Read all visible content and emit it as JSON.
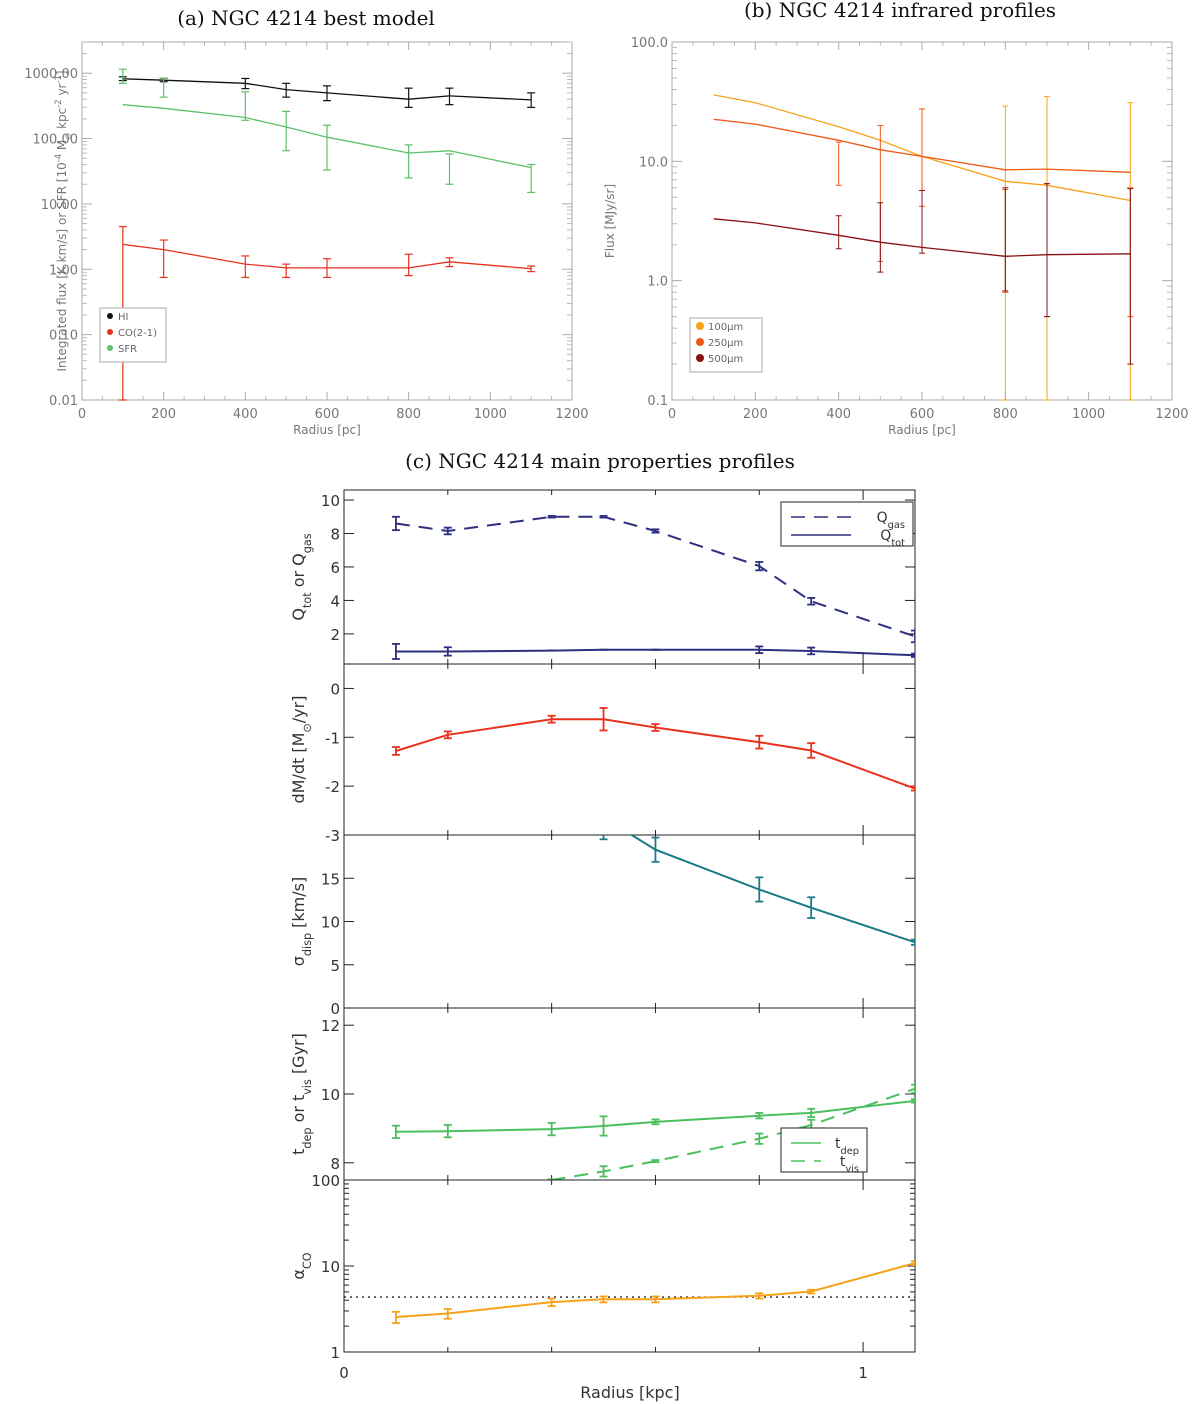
{
  "chart_data": [
    {
      "id": "a",
      "type": "line",
      "title": "(a) NGC 4214 best model",
      "xlabel": "Radius [pc]",
      "ylabel": "Integrated flux [K km/s] or SFR [10^-4 M⊙ kpc^-2 yr^-1]",
      "xlim": [
        0,
        1200
      ],
      "ylim": [
        0.01,
        3000
      ],
      "yscale": "log",
      "xticks": [
        "0",
        "200",
        "400",
        "600",
        "800",
        "1000",
        "1200"
      ],
      "yticks": [
        "0.01",
        "0.10",
        "1.00",
        "10.00",
        "100.00",
        "1000.00"
      ],
      "legend_position": "bottom-left",
      "series": [
        {
          "name": "HI",
          "color": "#111111",
          "x": [
            100,
            200,
            400,
            500,
            600,
            800,
            900,
            1100
          ],
          "y": [
            820,
            780,
            700,
            560,
            500,
            400,
            450,
            390
          ],
          "err_lo": [
            770,
            740,
            580,
            430,
            380,
            300,
            330,
            300
          ],
          "err_hi": [
            880,
            840,
            830,
            700,
            640,
            590,
            590,
            500
          ]
        },
        {
          "name": "CO(2-1)",
          "color": "#e8321e",
          "x": [
            100,
            200,
            400,
            500,
            600,
            800,
            900,
            1100
          ],
          "y": [
            2.4,
            2.0,
            1.2,
            1.05,
            1.05,
            1.05,
            1.3,
            1.02
          ],
          "err_lo": [
            0.01,
            0.75,
            0.75,
            0.75,
            0.75,
            0.8,
            1.1,
            0.92
          ],
          "err_hi": [
            4.5,
            2.8,
            1.6,
            1.2,
            1.45,
            1.7,
            1.5,
            1.12
          ]
        },
        {
          "name": "SFR",
          "color": "#5cc168",
          "x": [
            100,
            200,
            400,
            500,
            600,
            800,
            900,
            1100
          ],
          "y": [
            330,
            290,
            210,
            150,
            105,
            60,
            65,
            36
          ],
          "err_lo": [
            700,
            430,
            190,
            65,
            33,
            25,
            20,
            15
          ],
          "err_hi": [
            1150,
            840,
            520,
            260,
            160,
            80,
            58,
            40
          ]
        }
      ]
    },
    {
      "id": "b",
      "type": "line",
      "title": "(b) NGC 4214 infrared profiles",
      "xlabel": "Radius [pc]",
      "ylabel": "Flux [MJy/sr]",
      "xlim": [
        0,
        1200
      ],
      "ylim": [
        0.1,
        100
      ],
      "yscale": "log",
      "xticks": [
        "0",
        "200",
        "400",
        "600",
        "800",
        "1000",
        "1200"
      ],
      "yticks": [
        "0.1",
        "1.0",
        "10.0",
        "100.0"
      ],
      "legend_position": "bottom-left",
      "series": [
        {
          "name": "100μm",
          "color": "#f7a21b",
          "x": [
            100,
            200,
            400,
            500,
            600,
            800,
            900,
            1100
          ],
          "y": [
            36,
            31,
            19.5,
            15,
            11,
            6.8,
            6.3,
            4.7
          ],
          "err_lo": [
            null,
            null,
            null,
            null,
            null,
            0.1,
            0.1,
            0.1
          ],
          "err_hi": [
            null,
            null,
            null,
            null,
            null,
            29,
            35,
            31
          ]
        },
        {
          "name": "250μm",
          "color": "#ee5a16",
          "x": [
            100,
            200,
            400,
            500,
            600,
            800,
            900,
            1100
          ],
          "y": [
            22.5,
            20.5,
            15,
            12.5,
            11,
            8.5,
            8.6,
            8.1
          ],
          "err_lo": [
            null,
            null,
            6.3,
            1.45,
            4.2,
            0.8,
            0.5,
            0.5
          ],
          "err_hi": [
            null,
            null,
            14.5,
            20,
            27.5,
            5.8,
            6.5,
            6
          ],
          "note_err": "bars drawn around 250μm/500μm points"
        },
        {
          "name": "500μm",
          "color": "#8b1010",
          "x": [
            100,
            200,
            400,
            500,
            600,
            800,
            900,
            1100
          ],
          "y": [
            3.3,
            3.05,
            2.4,
            2.1,
            1.9,
            1.6,
            1.65,
            1.68
          ],
          "err_lo": [
            null,
            null,
            1.85,
            1.18,
            1.7,
            0.82,
            0.5,
            0.2
          ],
          "err_hi": [
            null,
            null,
            3.5,
            4.5,
            5.7,
            6,
            6.5,
            5.9
          ]
        }
      ]
    },
    {
      "id": "c",
      "type": "line",
      "title": "(c) NGC 4214 main properties profiles",
      "xlabel": "Radius [kpc]",
      "xlim": [
        0,
        1.1
      ],
      "xticks": [
        "0",
        "1"
      ],
      "panels": [
        {
          "id": "q",
          "ylabel": "Q_tot or Q_gas",
          "ylim": [
            0.2,
            10.6
          ],
          "yticks": [
            "2",
            "4",
            "6",
            "8",
            "10"
          ],
          "legend_position": "top-right",
          "series": [
            {
              "name": "Q_gas",
              "color": "#2e2f7f",
              "dash": "dashed",
              "x": [
                0.1,
                0.2,
                0.4,
                0.5,
                0.6,
                0.8,
                0.9,
                1.1
              ],
              "y": [
                8.6,
                8.15,
                9.0,
                9.0,
                8.15,
                6.05,
                3.95,
                1.85
              ],
              "err": [
                0.4,
                0.2,
                0.05,
                0.05,
                0.1,
                0.25,
                0.2,
                0.35
              ]
            },
            {
              "name": "Q_tot",
              "color": "#2e2f7f",
              "dash": "solid",
              "x": [
                0.1,
                0.2,
                0.4,
                0.5,
                0.6,
                0.8,
                0.9,
                1.1
              ],
              "y": [
                0.95,
                0.95,
                1.0,
                1.05,
                1.05,
                1.05,
                0.98,
                0.72
              ],
              "err": [
                0.45,
                0.25,
                0,
                0,
                0,
                0.2,
                0.2,
                0.1
              ]
            }
          ]
        },
        {
          "id": "dmdt",
          "ylabel": "dM/dt [M⊙/yr]",
          "ylim": [
            -3,
            0.5
          ],
          "yticks": [
            "-3",
            "-2",
            "-1",
            "0"
          ],
          "series": [
            {
              "name": "",
              "color": "#e8321e",
              "dash": "solid",
              "x": [
                0.1,
                0.2,
                0.4,
                0.5,
                0.6,
                0.8,
                0.9,
                1.1
              ],
              "y": [
                -1.28,
                -0.95,
                -0.63,
                -0.63,
                -0.8,
                -1.1,
                -1.27,
                -2.05
              ],
              "err": [
                0.08,
                0.07,
                0.07,
                0.23,
                0.07,
                0.13,
                0.15,
                0.04
              ]
            }
          ]
        },
        {
          "id": "sigma",
          "ylabel": "σ_disp [km/s]",
          "ylim": [
            0,
            20
          ],
          "yticks": [
            "0",
            "5",
            "10",
            "15"
          ],
          "series": [
            {
              "name": "",
              "color": "#1b7a87",
              "dash": "solid",
              "x": [
                0.5,
                0.6,
                0.8,
                0.9,
                1.1
              ],
              "y": [
                22,
                18.3,
                13.7,
                11.6,
                7.6
              ],
              "err": [
                2.5,
                1.4,
                1.4,
                1.2,
                0.3
              ]
            }
          ]
        },
        {
          "id": "t",
          "ylabel": "t_dep or t_vis [Gyr]",
          "ylim": [
            7.5,
            12.5
          ],
          "yticks": [
            "8",
            "10",
            "12"
          ],
          "legend_position": "bottom-right",
          "series": [
            {
              "name": "t_dep",
              "color": "#4bbf5e",
              "dash": "solid",
              "x": [
                0.1,
                0.2,
                0.4,
                0.5,
                0.6,
                0.8,
                0.9,
                1.1
              ],
              "y": [
                8.9,
                8.92,
                8.98,
                9.07,
                9.19,
                9.37,
                9.45,
                9.8
              ],
              "err": [
                0.18,
                0.18,
                0.18,
                0.28,
                0.07,
                0.08,
                0.12,
                0.05
              ]
            },
            {
              "name": "t_vis",
              "color": "#4bbf5e",
              "dash": "dashed",
              "x": [
                0.4,
                0.5,
                0.6,
                0.8,
                0.9,
                1.1
              ],
              "y": [
                7.5,
                7.75,
                8.05,
                8.7,
                9.1,
                10.15
              ],
              "err": [
                0.02,
                0.15,
                0.03,
                0.15,
                0.15,
                0.12
              ]
            }
          ]
        },
        {
          "id": "alpha",
          "ylabel": "α_CO",
          "ylim": [
            1,
            100
          ],
          "yscale": "log",
          "yticks": [
            "1",
            "10",
            "100"
          ],
          "reference_line": {
            "y": 4.35,
            "style": "dotted"
          },
          "series": [
            {
              "name": "",
              "color": "#f7a21b",
              "dash": "solid",
              "x": [
                0.1,
                0.2,
                0.4,
                0.5,
                0.6,
                0.8,
                0.9,
                1.1
              ],
              "y": [
                2.55,
                2.8,
                3.8,
                4.1,
                4.1,
                4.5,
                5.05,
                10.8
              ],
              "err_frac": [
                0.15,
                0.13,
                0.1,
                0.08,
                0.08,
                0.07,
                0.05,
                0.05
              ]
            }
          ]
        }
      ]
    }
  ]
}
